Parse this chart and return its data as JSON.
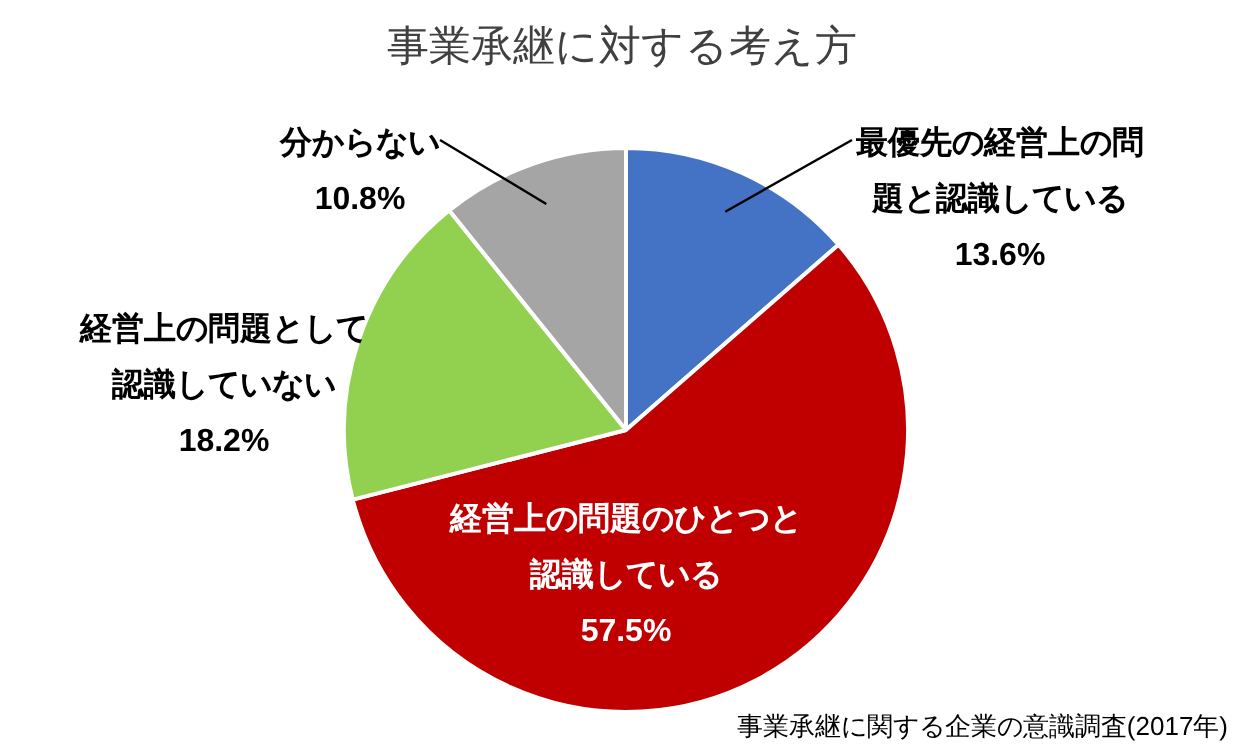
{
  "chart_data": {
    "type": "pie",
    "title": "事業承継に対する考え方",
    "categories": [
      "最優先の経営上の問題と認識している",
      "経営上の問題のひとつと認識している",
      "経営上の問題として認識していない",
      "分からない"
    ],
    "values": [
      13.6,
      57.5,
      18.2,
      10.8
    ],
    "colors": [
      "#4472c4",
      "#c00000",
      "#92d050",
      "#a5a5a5"
    ],
    "value_labels": [
      "13.6%",
      "57.5%",
      "18.2%",
      "10.8%"
    ],
    "legend": false,
    "annotations": [
      "事業承継に関する企業の意識調査(2017年)"
    ]
  }
}
